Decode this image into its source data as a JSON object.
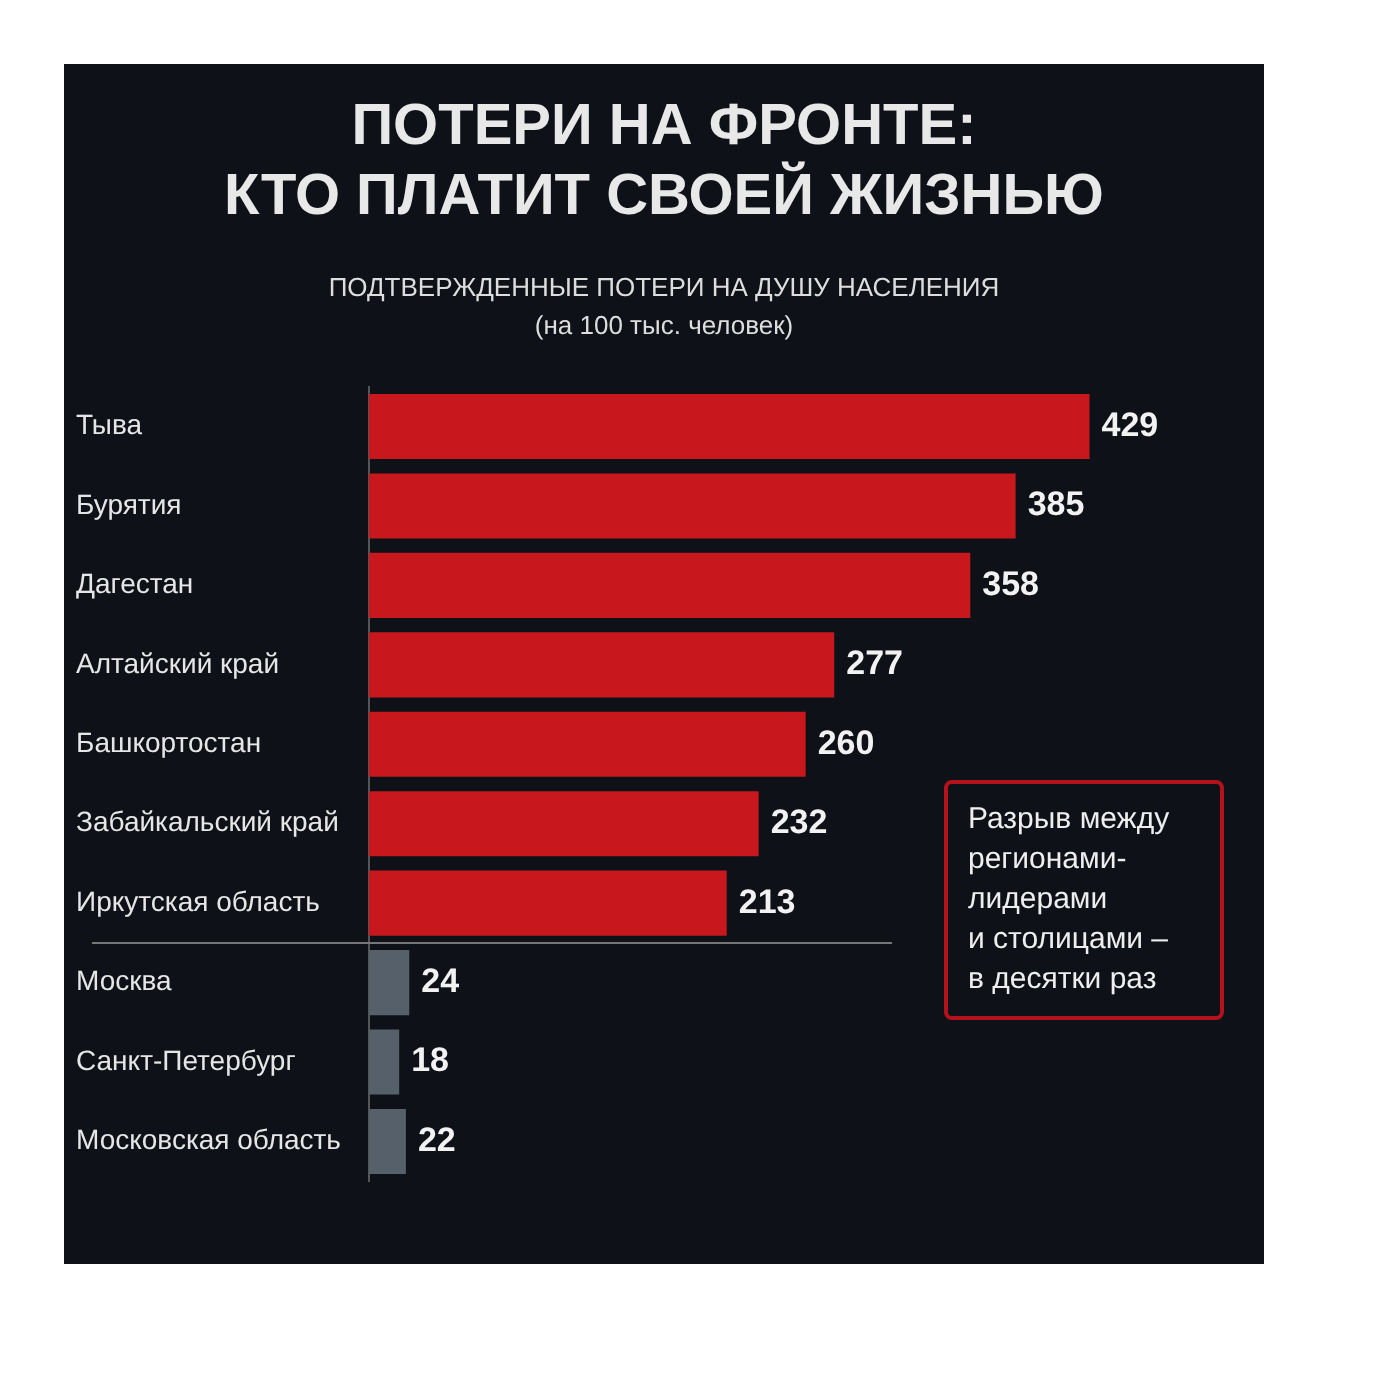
{
  "chart_data": {
    "type": "bar",
    "orientation": "horizontal",
    "title": "ПОТЕРИ НА ФРОНТЕ:\nКТО ПЛАТИТ СВОЕЙ ЖИЗНЬЮ",
    "subtitle": "ПОДТВЕРЖДЕННЫЕ ПОТЕРИ НА ДУШУ НАСЕЛЕНИЯ\n(на 100 тыс. человек)",
    "categories": [
      "Тыва",
      "Бурятия",
      "Дагестан",
      "Алтайский край",
      "Башкортостан",
      "Забайкальский край",
      "Иркутская область",
      "Москва",
      "Санкт-Петербург",
      "Московская область"
    ],
    "values": [
      429,
      385,
      358,
      277,
      260,
      232,
      213,
      24,
      18,
      22
    ],
    "colors": [
      "#c8171d",
      "#c8171d",
      "#c8171d",
      "#c8171d",
      "#c8171d",
      "#c8171d",
      "#c8171d",
      "#56606b",
      "#56606b",
      "#56606b"
    ],
    "data_labels": true,
    "grid": false,
    "legend": false,
    "annotations": [
      "Разрыв между\nрегионами-\nлидерами\nи столицами –\nв десятки раз"
    ]
  }
}
